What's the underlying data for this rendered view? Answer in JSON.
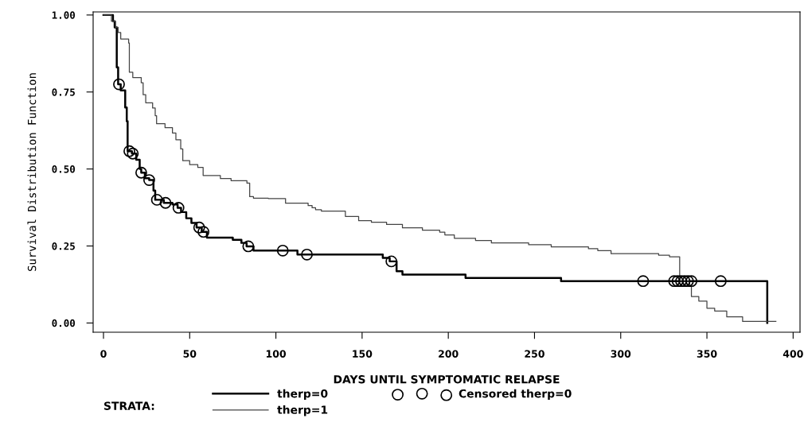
{
  "chart_data": {
    "type": "step",
    "xlabel": "DAYS UNTIL SYMPTOMATIC RELAPSE",
    "ylabel": "Survival Distribution Function",
    "legend_title": "STRATA:",
    "xlim": [
      -6,
      404
    ],
    "ylim": [
      -0.03,
      1.01
    ],
    "xticks": [
      0,
      50,
      100,
      150,
      200,
      250,
      300,
      350,
      400
    ],
    "yticks": [
      {
        "value": 0,
        "label": "0.00"
      },
      {
        "value": 0.25,
        "label": "0.25"
      },
      {
        "value": 0.5,
        "label": "0.50"
      },
      {
        "value": 0.75,
        "label": "0.75"
      },
      {
        "value": 1,
        "label": "1.00"
      }
    ],
    "grid": false,
    "legend": "bottom",
    "series": [
      {
        "name": "therp=0",
        "color": "#000000",
        "x": [
          0,
          5.5,
          6.5,
          7.7,
          8.5,
          10,
          12.6,
          13.5,
          14,
          16.5,
          19,
          21,
          21.9,
          24,
          26.5,
          29,
          30,
          35,
          40,
          43,
          45,
          48,
          51,
          54,
          57,
          60,
          75,
          80,
          83,
          87,
          112.5,
          162,
          166,
          170,
          173.4,
          210,
          265.4,
          385
        ],
        "values": [
          1.0,
          0.98,
          0.96,
          0.83,
          0.775,
          0.755,
          0.7,
          0.655,
          0.558,
          0.55,
          0.53,
          0.5,
          0.488,
          0.47,
          0.464,
          0.43,
          0.4,
          0.39,
          0.385,
          0.374,
          0.36,
          0.34,
          0.325,
          0.31,
          0.296,
          0.277,
          0.27,
          0.26,
          0.249,
          0.235,
          0.222,
          0.211,
          0.2,
          0.168,
          0.157,
          0.146,
          0.136,
          0.0
        ]
      },
      {
        "name": "therp=1",
        "color": "#444444",
        "x": [
          0,
          4.6,
          7,
          8.5,
          10,
          14.6,
          15,
          17,
          21.9,
          23,
          24.5,
          28.5,
          30,
          30.8,
          35.7,
          40,
          42,
          44.8,
          46,
          50,
          54.7,
          57.8,
          67.8,
          74,
          83.2,
          84.8,
          87,
          95.6,
          105.6,
          118.7,
          121,
          123,
          126.4,
          140.3,
          148,
          155.4,
          164.2,
          173.4,
          185,
          195,
          198,
          203.5,
          215.8,
          225,
          246.6,
          259.7,
          281.3,
          286.7,
          294.4,
          322,
          328.3,
          334.2,
          340,
          341,
          345.3,
          350,
          354.5,
          361.5,
          370.7,
          390
        ],
        "values": [
          1.0,
          0.98,
          0.96,
          0.943,
          0.922,
          0.909,
          0.814,
          0.797,
          0.78,
          0.741,
          0.715,
          0.698,
          0.673,
          0.647,
          0.634,
          0.617,
          0.595,
          0.565,
          0.527,
          0.514,
          0.505,
          0.479,
          0.469,
          0.462,
          0.454,
          0.41,
          0.405,
          0.404,
          0.389,
          0.381,
          0.374,
          0.368,
          0.363,
          0.346,
          0.332,
          0.327,
          0.32,
          0.309,
          0.301,
          0.295,
          0.286,
          0.275,
          0.268,
          0.26,
          0.254,
          0.247,
          0.241,
          0.235,
          0.225,
          0.22,
          0.215,
          0.136,
          0.119,
          0.086,
          0.071,
          0.048,
          0.039,
          0.02,
          0.005,
          0.005
        ]
      },
      {
        "name": "Censored therp=0",
        "type": "scatter",
        "marker": "circle",
        "color": "#000000",
        "x": [
          9,
          15,
          17,
          21.9,
          26.5,
          31,
          36,
          43.5,
          55.5,
          58,
          84,
          104,
          118,
          167,
          313,
          331,
          333,
          335,
          337,
          339,
          341,
          358
        ],
        "values": [
          0.775,
          0.558,
          0.55,
          0.488,
          0.464,
          0.4,
          0.39,
          0.374,
          0.31,
          0.296,
          0.249,
          0.235,
          0.222,
          0.2,
          0.136,
          0.136,
          0.136,
          0.136,
          0.136,
          0.136,
          0.136,
          0.136
        ]
      }
    ]
  }
}
